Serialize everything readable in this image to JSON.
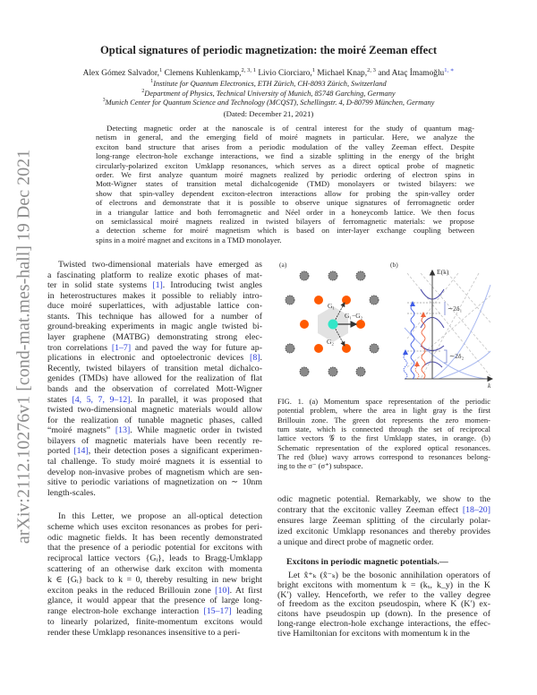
{
  "sidebar_stamp": "arXiv:2112.10276v1  [cond-mat.mes-hall]  19 Dec 2021",
  "header": {
    "title": "Optical signatures of periodic magnetization: the moiré Zeeman effect",
    "authors": [
      {
        "name": "Alex Gómez Salvador,",
        "aff": "1"
      },
      {
        "name": " Clemens Kuhlenkamp,",
        "aff": "2, 3, 1"
      },
      {
        "name": " Livio Ciorciaro,",
        "aff": "1"
      },
      {
        "name": " Michael Knap,",
        "aff": "2, 3"
      },
      {
        "name": " and Ataç İmamoğlu",
        "aff": "1, ∗"
      }
    ],
    "affiliations": [
      {
        "num": "1",
        "text": "Institute for Quantum Electronics, ETH Zürich, CH-8093 Zürich, Switzerland"
      },
      {
        "num": "2",
        "text": "Department of Physics, Technical University of Munich, 85748 Garching, Germany"
      },
      {
        "num": "3",
        "text": "Munich Center for Quantum Science and Technology (MCQST), Schellingstr. 4, D-80799 München, Germany"
      }
    ],
    "dated": "(Dated: December 21, 2021)"
  },
  "abstract": [
    "Detecting magnetic order at the nanoscale is of central interest for the study of quantum mag-",
    "netism in general, and the emerging field of moiré magnets in particular. Here, we analyze the",
    "exciton band structure that arises from a periodic modulation of the valley Zeeman effect. Despite",
    "long-range electron-hole exchange interactions, we find a sizable splitting in the energy of the bright",
    "circularly-polarized exciton Umklapp resonances, which serves as a direct optical probe of magnetic",
    "order. We first analyze quantum moiré magnets realized by periodic ordering of electron spins in",
    "Mott-Wigner states of transition metal dichalcogenide (TMD) monolayers or twisted bilayers: we",
    "show that spin-valley dependent exciton-electron interactions allow for probing the spin-valley order",
    "of electrons and demonstrate that it is possible to observe unique signatures of ferromagnetic order",
    "in a triangular lattice and both ferromagnetic and Néel order in a honeycomb lattice. We then focus",
    "on semiclassical moiré magnets realized in twisted bilayers of ferromagnetic materials: we propose",
    "a detection scheme for moiré magnetism which is based on inter-layer exchange coupling between",
    "spins in a moiré magnet and excitons in a TMD monolayer."
  ],
  "left_column": {
    "paragraph_1": [
      "Twisted two-dimensional materials have emerged as",
      "a fascinating platform to realize exotic phases of mat-",
      "ter in solid state systems [1]. Introducing twist angles",
      "in heterostructures makes it possible to reliably intro-",
      "duce moiré superlattices, with adjustable lattice con-",
      "stants. This technique has allowed for a number of",
      "ground-breaking experiments in magic angle twisted bi-",
      "layer graphene (MATBG) demonstrating strong elec-",
      "tron correlations [1–7] and paved the way for future ap-",
      "plications in electronic and optoelectronic devices [8].",
      "Recently, twisted bilayers of transition metal dichalco-",
      "genides (TMDs) have allowed for the realization of flat",
      "bands and the observation of correlated Mott-Wigner",
      "states [4, 5, 7, 9–12]. In parallel, it was proposed that",
      "twisted two-dimensional magnetic materials would allow",
      "for the realization of tunable magnetic phases, called",
      "“moiré magnets” [13]. While magnetic order in twisted",
      "bilayers of magnetic materials have been recently re-",
      "ported [14], their detection poses a significant experimen-",
      "tal challenge. To study moiré magnets it is essential to",
      "develop non-invasive probes of magnetism which are sen-",
      "sitive to periodic variations of magnetization on ∼ 10nm",
      "length-scales."
    ],
    "paragraph_2": [
      "In this Letter, we propose an all-optical detection",
      "scheme which uses exciton resonances as probes for peri-",
      "odic magnetic fields. It has been recently demonstrated",
      "that the presence of a periodic potential for excitons with",
      "reciprocal lattice vectors {Gᵢ}, leads to Bragg-Umklapp",
      "scattering of an otherwise dark exciton with momenta",
      "k ∈ {Gᵢ} back to k = 0, thereby resulting in new bright",
      "exciton peaks in the reduced Brillouin zone [10]. At first",
      "glance, it would appear that the presence of large long-",
      "range electron-hole exchange interaction [15–17] leading",
      "to linearly polarized, finite-momentum excitons would",
      "render these Umklapp resonances insensitive to a peri-"
    ]
  },
  "figure": {
    "panel_a_label": "(a)",
    "panel_b_label": "(b)",
    "vector_labels": [
      "G₁",
      "G₁−G₂",
      "G₂"
    ],
    "axis_y_label": "E(k)",
    "axis_x_label": "k",
    "splitting_labels": [
      "∼2δ₁",
      "∼2δ₂"
    ],
    "colors": {
      "zero_momentum": "#33e6c8",
      "umklapp": "#ff5a00",
      "lattice": "#8a8a8a",
      "sigma_minus": "#f0643c",
      "sigma_plus": "#3c5ae6"
    },
    "caption": [
      "FIG. 1. (a) Momentum space representation of the periodic",
      "potential problem, where the area in light gray is the first",
      "Brillouin zone. The green dot represents the zero momen-",
      "tum state, which is connected through the set of reciprocal",
      "lattice vectors 𝒢 to the first Umklapp states, in orange. (b)",
      "Schematic representation of the explored optical resonances.",
      "The red (blue) wavy arrows correspond to resonances belong-",
      "ing to the σ⁻ (σ⁺) subspace."
    ]
  },
  "right_column": {
    "paragraph_1": [
      "odic magnetic potential. Remarkably, we show to the",
      "contrary that the excitonic valley Zeeman effect [18–20]",
      "ensures large Zeeman splitting of the circularly polar-",
      "ized excitonic Umklapp resonances and thereby provides",
      "a unique and direct probe of magnetic order."
    ],
    "section_heading": "Excitons in periodic magnetic potentials.—",
    "paragraph_2": [
      "Let x̂⁺ₖ (x̂⁻ₖ) be the bosonic annihilation operators of",
      "bright excitons with momentum k = (kₓ, k_y) in the K",
      "(K′) valley. Henceforth, we refer to the valley degree",
      "of freedom as the exciton pseudospin, where K (K′) ex-",
      "citons have pseudospin up (down). In the presence of",
      "long-range electron-hole exchange interactions, the effec-",
      "tive Hamiltonian for excitons with momentum k in the"
    ]
  }
}
